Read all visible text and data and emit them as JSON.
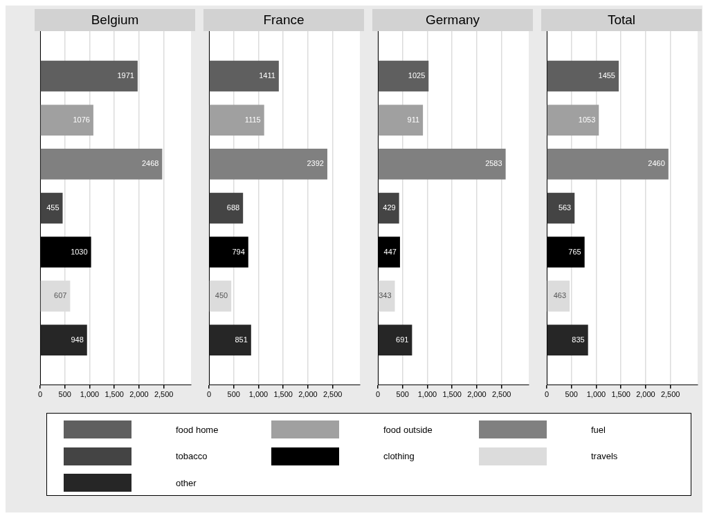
{
  "chart_data": [
    {
      "type": "bar",
      "orientation": "horizontal",
      "title": "Belgium",
      "categories": [
        null
      ],
      "legend": "bottom",
      "grid": "x",
      "data_labels": true,
      "xlim": [
        0,
        3050
      ],
      "xticks": [
        {
          "value": 0,
          "label": "0"
        },
        {
          "value": 500,
          "label": "500"
        },
        {
          "value": 1000,
          "label": "1,000"
        },
        {
          "value": 1500,
          "label": "1,500"
        },
        {
          "value": 2000,
          "label": "2,000"
        },
        {
          "value": 2500,
          "label": "2,500"
        }
      ],
      "series": [
        {
          "name": "food home",
          "color": "#5f5f5f",
          "values": [
            1971
          ]
        },
        {
          "name": "food outside",
          "color": "#a0a0a0",
          "values": [
            1076
          ]
        },
        {
          "name": "fuel",
          "color": "#808080",
          "values": [
            2468
          ]
        },
        {
          "name": "tobacco",
          "color": "#444444",
          "values": [
            455
          ]
        },
        {
          "name": "clothing",
          "color": "#000000",
          "values": [
            1030
          ]
        },
        {
          "name": "travels",
          "color": "#dcdcdc",
          "values": [
            607
          ]
        },
        {
          "name": "other",
          "color": "#262626",
          "values": [
            948
          ]
        }
      ]
    },
    {
      "type": "bar",
      "orientation": "horizontal",
      "title": "France",
      "categories": [
        null
      ],
      "grid": "x",
      "data_labels": true,
      "xlim": [
        0,
        3050
      ],
      "xticks": [
        {
          "value": 0,
          "label": "0"
        },
        {
          "value": 500,
          "label": "500"
        },
        {
          "value": 1000,
          "label": "1,000"
        },
        {
          "value": 1500,
          "label": "1,500"
        },
        {
          "value": 2000,
          "label": "2,000"
        },
        {
          "value": 2500,
          "label": "2,500"
        }
      ],
      "series": [
        {
          "color": "#5f5f5f",
          "values": [
            1411
          ]
        },
        {
          "color": "#a0a0a0",
          "values": [
            1115
          ]
        },
        {
          "color": "#808080",
          "values": [
            2392
          ]
        },
        {
          "color": "#444444",
          "values": [
            688
          ]
        },
        {
          "color": "#000000",
          "values": [
            794
          ]
        },
        {
          "color": "#dcdcdc",
          "values": [
            450
          ]
        },
        {
          "color": "#262626",
          "values": [
            851
          ]
        }
      ]
    },
    {
      "type": "bar",
      "orientation": "horizontal",
      "title": "Germany",
      "categories": [
        null
      ],
      "grid": "x",
      "data_labels": true,
      "xlim": [
        0,
        3050
      ],
      "xticks": [
        {
          "value": 0,
          "label": "0"
        },
        {
          "value": 500,
          "label": "500"
        },
        {
          "value": 1000,
          "label": "1,000"
        },
        {
          "value": 1500,
          "label": "1,500"
        },
        {
          "value": 2000,
          "label": "2,000"
        },
        {
          "value": 2500,
          "label": "2,500"
        }
      ],
      "series": [
        {
          "color": "#5f5f5f",
          "values": [
            1025
          ]
        },
        {
          "color": "#a0a0a0",
          "values": [
            911
          ]
        },
        {
          "color": "#808080",
          "values": [
            2583
          ]
        },
        {
          "color": "#444444",
          "values": [
            429
          ]
        },
        {
          "color": "#000000",
          "values": [
            447
          ]
        },
        {
          "color": "#dcdcdc",
          "values": [
            343
          ]
        },
        {
          "color": "#262626",
          "values": [
            691
          ]
        }
      ]
    },
    {
      "type": "bar",
      "orientation": "horizontal",
      "title": "Total",
      "categories": [
        null
      ],
      "grid": "x",
      "data_labels": true,
      "xlim": [
        0,
        3050
      ],
      "xticks": [
        {
          "value": 0,
          "label": "0"
        },
        {
          "value": 500,
          "label": "500"
        },
        {
          "value": 1000,
          "label": "1,000"
        },
        {
          "value": 1500,
          "label": "1,500"
        },
        {
          "value": 2000,
          "label": "2,000"
        },
        {
          "value": 2500,
          "label": "2,500"
        }
      ],
      "series": [
        {
          "color": "#5f5f5f",
          "values": [
            1455
          ]
        },
        {
          "color": "#a0a0a0",
          "values": [
            1053
          ]
        },
        {
          "color": "#808080",
          "values": [
            2460
          ]
        },
        {
          "color": "#444444",
          "values": [
            563
          ]
        },
        {
          "color": "#000000",
          "values": [
            765
          ]
        },
        {
          "color": "#dcdcdc",
          "values": [
            463
          ]
        },
        {
          "color": "#262626",
          "values": [
            835
          ]
        }
      ]
    }
  ]
}
